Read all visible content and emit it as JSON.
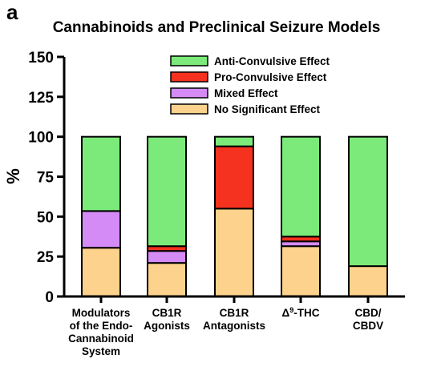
{
  "panel_letter": "a",
  "chart_data": {
    "type": "bar",
    "stacked": true,
    "title": "Cannabinoids and Preclinical Seizure Models",
    "xlabel": "",
    "ylabel": "%",
    "ylim": [
      0,
      150
    ],
    "yticks": [
      0,
      25,
      50,
      75,
      100,
      125,
      150
    ],
    "grid": false,
    "legend_position": "top-right",
    "categories": [
      [
        "Modulators",
        "of the Endo-",
        "Cannabinoid",
        "System"
      ],
      [
        "CB1R",
        "Agonists"
      ],
      [
        "CB1R",
        "Antagonists"
      ],
      [
        "Δ9-THC"
      ],
      [
        "CBD/",
        "CBDV"
      ]
    ],
    "series": [
      {
        "name": "No Significant Effect",
        "color": "#FDD28C",
        "values": [
          30.5,
          21,
          55,
          31.5,
          19
        ]
      },
      {
        "name": "Mixed Effect",
        "color": "#D58BF5",
        "values": [
          23,
          7.5,
          0,
          3,
          0
        ]
      },
      {
        "name": "Pro-Convulsive Effect",
        "color": "#F5311F",
        "values": [
          0,
          3,
          39,
          3,
          0
        ]
      },
      {
        "name": "Anti-Convulsive Effect",
        "color": "#7BEA7A",
        "values": [
          46.5,
          68.5,
          6,
          62.5,
          81
        ]
      }
    ],
    "legend_order": [
      "Anti-Convulsive Effect",
      "Pro-Convulsive Effect",
      "Mixed Effect",
      "No Significant Effect"
    ]
  }
}
